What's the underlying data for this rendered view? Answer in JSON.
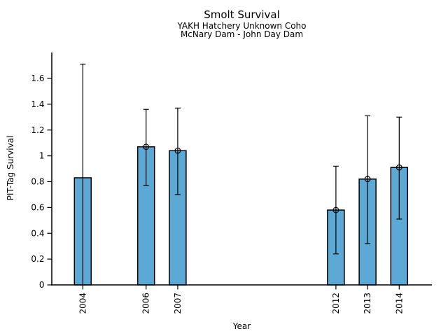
{
  "header": {
    "title": "Smolt Survival",
    "subtitle1": "YAKH Hatchery Unknown Coho",
    "subtitle2": "McNary Dam - John Day Dam"
  },
  "chart_data": {
    "type": "bar",
    "title": "Smolt Survival",
    "subtitle1": "YAKH Hatchery Unknown Coho",
    "subtitle2": "McNary Dam - John Day Dam",
    "xlabel": "Year",
    "ylabel": "PIT-Tag Survival",
    "categories": [
      2004,
      2006,
      2007,
      2012,
      2013,
      2014
    ],
    "series": [
      {
        "name": "PIT-Tag Survival",
        "values": [
          0.83,
          1.07,
          1.04,
          0.58,
          0.82,
          0.91
        ],
        "ci_low": [
          0.0,
          0.77,
          0.7,
          0.24,
          0.32,
          0.51
        ],
        "ci_high": [
          1.71,
          1.36,
          1.37,
          0.92,
          1.31,
          1.3
        ],
        "point_marker": [
          false,
          true,
          true,
          true,
          true,
          true
        ]
      }
    ],
    "x_axis": {
      "label": "Year",
      "tick_labels": [
        "2004",
        "2006",
        "2007",
        "2012",
        "2013",
        "2014"
      ],
      "tick_values": [
        2004,
        2006,
        2007,
        2012,
        2013,
        2014
      ],
      "tick_label_rotation_deg": 90
    },
    "y_axis": {
      "label": "PIT-Tag Survival",
      "tick_labels": [
        "0",
        "0.2",
        "0.4",
        "0.6",
        "0.8",
        "1",
        "1.2",
        "1.4",
        "1.6"
      ],
      "tick_values": [
        0,
        0.2,
        0.4,
        0.6,
        0.8,
        1.0,
        1.2,
        1.4,
        1.6
      ],
      "range": [
        0,
        1.8
      ]
    },
    "grid": false,
    "legend": false,
    "colors": {
      "bar_fill": "#5BA9D4",
      "bar_edge": "#000000",
      "error_bar": "#000000",
      "marker_edge": "#000000",
      "axis": "#000000",
      "background": "#FFFFFF",
      "text": "#000000"
    }
  }
}
